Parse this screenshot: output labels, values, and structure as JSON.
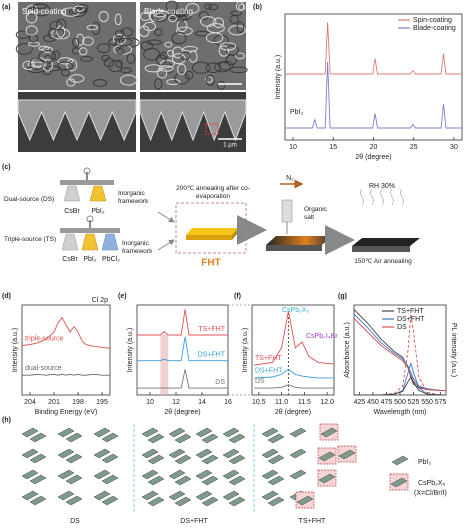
{
  "panel_labels": [
    "(a)",
    "(b)",
    "(c)",
    "(d)",
    "(e)",
    "(f)",
    "(g)",
    "(h)"
  ],
  "panel_a": {
    "labels": [
      "Spin-coating",
      "Blade-coating"
    ],
    "scale_bar": "1 μm"
  },
  "panel_c": {
    "dual_source": "Dual-source (DS)",
    "triple_source": "Triple-source (TS)",
    "ds_precursors": [
      "CsBr",
      "PbI₂"
    ],
    "ts_precursors": [
      "CsBr",
      "PbI₂",
      "PbCl₂"
    ],
    "framework_labels": [
      "Inorganic framework",
      "Inorganic framework"
    ],
    "annealing": "200℃ annealing after co-evaporation",
    "fht": "FHT",
    "gas": "N₂",
    "organic_salt": "Organic salt",
    "humidity": "RH 30%",
    "air_annealing": "150℃ Air annealing"
  },
  "panel_h": {
    "groups": [
      "DS",
      "DS+FHT",
      "TS+FHT"
    ],
    "legend": [
      "PbI₂",
      "CsPb₂X₅"
    ],
    "legend_note": "(X=Cl/Br/I)"
  },
  "chart_data": [
    {
      "type": "line",
      "x": [
        9,
        12.4,
        12.7,
        13.0,
        14.0,
        14.3,
        14.6,
        19.9,
        20.2,
        20.5,
        24.6,
        24.9,
        25.2,
        28.4,
        28.7,
        29.0,
        31
      ],
      "xlim": [
        9,
        31
      ],
      "xticks": [
        10,
        15,
        20,
        25,
        30
      ],
      "ylim": [
        0,
        105
      ],
      "x_label": "2θ (degree)",
      "y_label": "Intensity (a.u.)",
      "legend": "upper right",
      "annotations": [
        "PbI₂"
      ],
      "series": [
        {
          "name": "Spin-coating",
          "color": "#e07a7a",
          "values": [
            55,
            55,
            55,
            55,
            55,
            98,
            55,
            55,
            68,
            55,
            55,
            58,
            55,
            55,
            72,
            55,
            55
          ]
        },
        {
          "name": "Blade-coating",
          "color": "#7a80c8",
          "values": [
            10,
            10,
            17,
            10,
            10,
            65,
            10,
            10,
            22,
            10,
            10,
            13,
            10,
            10,
            30,
            10,
            10
          ]
        }
      ]
    },
    {
      "type": "line",
      "x": [
        205,
        204,
        203,
        202,
        201,
        200.5,
        200,
        199.5,
        199,
        198.5,
        198,
        197.5,
        197,
        196,
        195,
        194
      ],
      "xlim": [
        205,
        194
      ],
      "xticks": [
        204,
        201,
        198,
        195
      ],
      "ylim": [
        0,
        100
      ],
      "x_label": "Binding Energy (eV)",
      "y_label": "Intensity (a.u.)",
      "legend": "inline-left",
      "annotations": [
        "Cl 2p"
      ],
      "series": [
        {
          "name": "triple-source",
          "color": "#d9534f",
          "values": [
            55,
            56,
            58,
            62,
            70,
            80,
            86,
            78,
            70,
            76,
            70,
            60,
            56,
            54,
            53,
            52
          ]
        },
        {
          "name": "dual-source",
          "color": "#666666",
          "values": [
            22,
            22,
            23,
            22,
            23,
            22,
            23,
            22,
            23,
            22,
            23,
            22,
            22,
            23,
            22,
            22
          ]
        }
      ]
    },
    {
      "type": "line",
      "x": [
        9,
        10.8,
        11.1,
        11.4,
        12.4,
        12.7,
        13.0,
        14,
        16
      ],
      "xlim": [
        9,
        16
      ],
      "xticks": [
        10,
        12,
        14,
        16
      ],
      "ylim": [
        0,
        105
      ],
      "x_label": "2θ (degree)",
      "y_label": "Intensity (a.u.)",
      "legend": "inline-right",
      "series": [
        {
          "name": "TS+FHT",
          "color": "#e05050",
          "values": [
            70,
            70,
            74,
            70,
            70,
            100,
            70,
            70,
            70
          ]
        },
        {
          "name": "DS+FHT",
          "color": "#3aa0dc",
          "values": [
            40,
            40,
            42,
            40,
            40,
            68,
            40,
            40,
            40
          ]
        },
        {
          "name": "DS",
          "color": "#777777",
          "values": [
            8,
            8,
            8,
            8,
            8,
            30,
            8,
            8,
            8
          ]
        }
      ]
    },
    {
      "type": "line",
      "x": [
        10.4,
        10.8,
        11.0,
        11.15,
        11.3,
        11.45,
        11.6,
        11.8,
        12.15
      ],
      "xlim": [
        10.35,
        12.15
      ],
      "xticks": [
        10.5,
        {
          "value": 11,
          "label": "11.0"
        },
        11.5,
        {
          "value": 12,
          "label": "12.0"
        }
      ],
      "ylim": [
        0,
        105
      ],
      "x_label": "2θ (degree)",
      "y_label": "Intensity (a.u.)",
      "legend": "inline-left",
      "annotations": [
        "CsPb₂X₅",
        "CsPb₂I₄Br"
      ],
      "series": [
        {
          "name": "TS+FHT",
          "color": "#e05050",
          "values": [
            35,
            38,
            55,
            98,
            55,
            62,
            45,
            38,
            36
          ]
        },
        {
          "name": "DS+FHT",
          "color": "#3aa0dc",
          "values": [
            20,
            21,
            24,
            30,
            24,
            22,
            21,
            20,
            20
          ]
        },
        {
          "name": "DS",
          "color": "#777777",
          "values": [
            8,
            8,
            9,
            12,
            9,
            8,
            8,
            8,
            8
          ]
        }
      ]
    },
    {
      "type": "line",
      "x": [
        415,
        440,
        465,
        490,
        505,
        515,
        520,
        525,
        535,
        550,
        575,
        585
      ],
      "xlim": [
        415,
        585
      ],
      "xticks": [
        425,
        450,
        475,
        500,
        525,
        550,
        575
      ],
      "ylim": [
        0,
        100
      ],
      "y2lim": [
        0,
        100
      ],
      "x_label": "Wavelength (nm)",
      "y_label": "Absorbance (a.u.)",
      "y2_label": "PL intensity (a.u.)",
      "legend": "upper right",
      "series": [
        {
          "name": "TS+FHT",
          "color": "#444444",
          "values": [
            95,
            80,
            62,
            48,
            42,
            30,
            20,
            12,
            8,
            6,
            5,
            5
          ]
        },
        {
          "name": "DS+FHT",
          "color": "#3a78c8",
          "values": [
            90,
            75,
            58,
            46,
            40,
            32,
            25,
            18,
            10,
            7,
            5,
            5
          ]
        },
        {
          "name": "DS",
          "color": "#d9534f",
          "values": [
            85,
            70,
            55,
            44,
            38,
            30,
            22,
            15,
            9,
            6,
            5,
            5
          ]
        },
        {
          "axis": "y2",
          "color": "#d9534f",
          "style": "dashed",
          "values": [
            0,
            0,
            0,
            2,
            10,
            50,
            90,
            70,
            20,
            3,
            0,
            0
          ]
        },
        {
          "axis": "y2",
          "color": "#3a78c8",
          "values": [
            0,
            0,
            0,
            1,
            5,
            25,
            35,
            25,
            8,
            1,
            0,
            0
          ]
        },
        {
          "axis": "y2",
          "color": "#444444",
          "values": [
            0,
            0,
            0,
            1,
            4,
            15,
            20,
            14,
            5,
            1,
            0,
            0
          ]
        }
      ]
    }
  ]
}
